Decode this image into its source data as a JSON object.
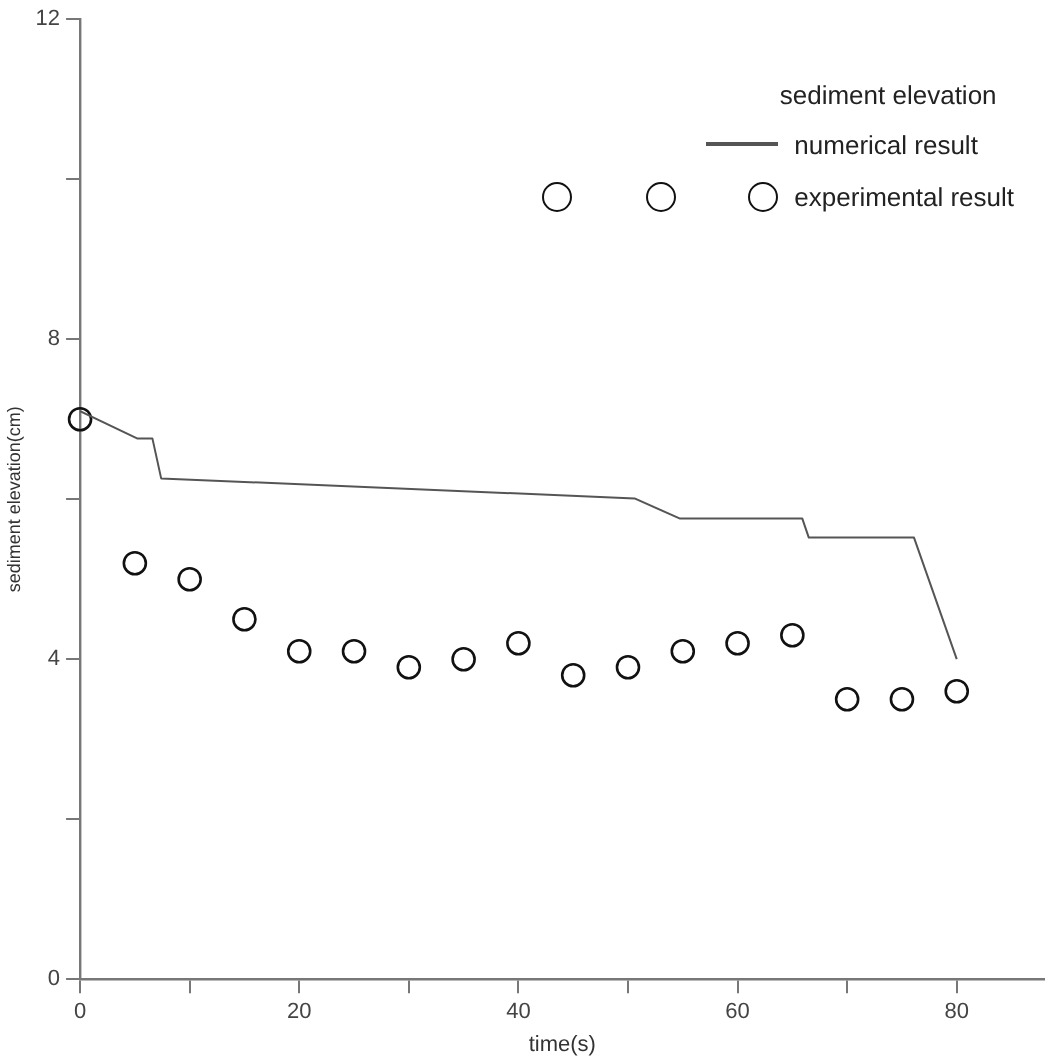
{
  "chart_data": {
    "type": "line",
    "xlabel": "time(s)",
    "ylabel": "sediment elevation(cm)",
    "legend_title": "sediment elevation",
    "xlim": [
      0,
      88
    ],
    "xticks": [
      0,
      {
        "value": 10,
        "label": null
      },
      20,
      {
        "value": 30,
        "label": null
      },
      40,
      {
        "value": 50,
        "label": null
      },
      60,
      {
        "value": 70,
        "label": null
      },
      80
    ],
    "ylim": [
      0,
      12
    ],
    "yticks": [
      0,
      {
        "value": 2,
        "label": null
      },
      4,
      {
        "value": 6,
        "label": null
      },
      8,
      {
        "value": 10,
        "label": null
      },
      12
    ],
    "grid": false,
    "legend": "top right",
    "series": [
      {
        "name": "numerical result",
        "color": "#555555",
        "marker": "none",
        "x": [
          0,
          5.2,
          6.6,
          7.4,
          50.6,
          54.7,
          65.9,
          66.5,
          76.1,
          80
        ],
        "values": [
          7.1,
          6.76,
          6.76,
          6.26,
          6.01,
          5.76,
          5.76,
          5.52,
          5.52,
          4.0
        ]
      },
      {
        "name": "experimental result",
        "type": "scatter",
        "color": "#111111",
        "marker": "circle",
        "x": [
          0,
          5,
          10,
          15,
          20,
          25,
          30,
          35,
          40,
          45,
          50,
          55,
          60,
          65,
          70,
          75,
          80
        ],
        "values": [
          7.0,
          5.2,
          5.0,
          4.5,
          4.1,
          4.1,
          3.9,
          4.0,
          4.2,
          3.8,
          3.9,
          4.1,
          4.2,
          4.3,
          3.5,
          3.5,
          3.6
        ]
      }
    ]
  }
}
